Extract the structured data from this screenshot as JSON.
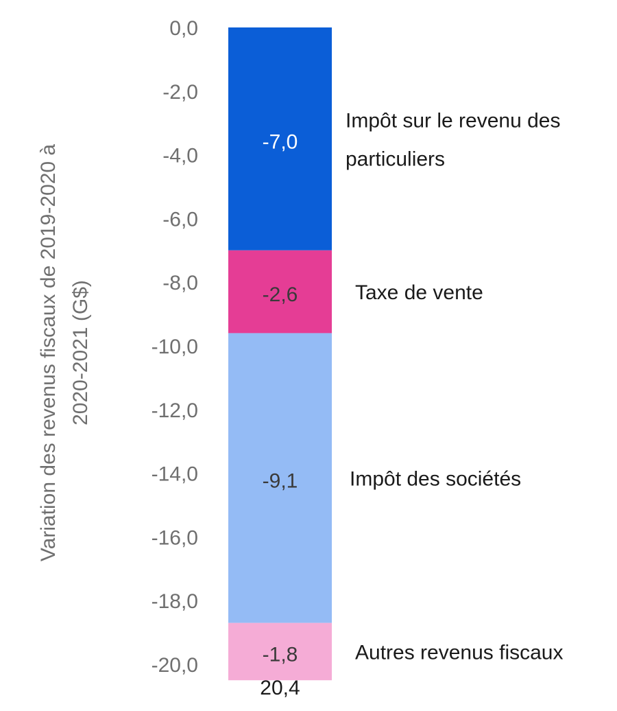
{
  "chart_data": {
    "type": "bar",
    "stacked": true,
    "ylabel": "Variation des revenus fiscaux de 2019-2020 à 2020-2021 (G$)",
    "ylabel_lines": [
      "Variation des revenus fiscaux de 2019-2020 à",
      "2020-2021 (G$)"
    ],
    "ylim": [
      -20.0,
      0.0
    ],
    "yticks": [
      0.0,
      -2.0,
      -4.0,
      -6.0,
      -8.0,
      -10.0,
      -12.0,
      -14.0,
      -16.0,
      -18.0,
      -20.0
    ],
    "ytick_labels": [
      "0,0",
      "-2,0",
      "-4,0",
      "-6,0",
      "-8,0",
      "-10,0",
      "-12,0",
      "-14,0",
      "-16,0",
      "-18,0",
      "-20,0"
    ],
    "categories": [
      "20,4"
    ],
    "grid": false,
    "legend_placement": "right (inline labels)",
    "series": [
      {
        "name": "Impôt sur le revenu des particuliers",
        "name_lines": [
          "Impôt sur le revenu des",
          "particuliers"
        ],
        "values": [
          -7.0
        ],
        "value_label": "-7,0",
        "color": "#0b5ed7",
        "label_color": "#ffffff"
      },
      {
        "name": "Taxe de vente",
        "name_lines": [
          "Taxe de vente"
        ],
        "values": [
          -2.6
        ],
        "value_label": "-2,6",
        "color": "#e53d95",
        "label_color": "#3a3a3a"
      },
      {
        "name": "Impôt des sociétés",
        "name_lines": [
          "Impôt des sociétés"
        ],
        "values": [
          -9.1
        ],
        "value_label": "-9,1",
        "color": "#94bbf5",
        "label_color": "#3a3a3a"
      },
      {
        "name": "Autres revenus fiscaux",
        "name_lines": [
          "Autres revenus fiscaux"
        ],
        "values": [
          -1.8
        ],
        "value_label": "-1,8",
        "color": "#f5acd6",
        "label_color": "#3a3a3a"
      }
    ]
  }
}
